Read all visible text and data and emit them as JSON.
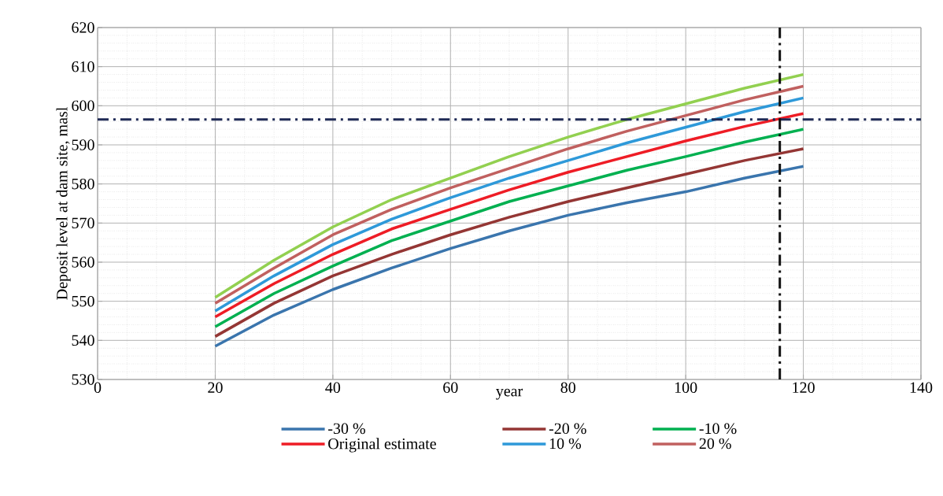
{
  "chart_data": {
    "type": "line",
    "xlabel": "year",
    "ylabel": "Deposit level at dam site, masl",
    "x": [
      20,
      30,
      40,
      50,
      60,
      70,
      80,
      90,
      100,
      110,
      120
    ],
    "series": [
      {
        "name": "-30 %",
        "color": "#3a75ad",
        "values": [
          538.5,
          546.5,
          553,
          558.5,
          563.5,
          568,
          572,
          575.2,
          578,
          581.5,
          584.5
        ]
      },
      {
        "name": "-20 %",
        "color": "#943634",
        "values": [
          541,
          549.5,
          556.5,
          562,
          567,
          571.5,
          575.5,
          579,
          582.5,
          586,
          589
        ]
      },
      {
        "name": "-10 %",
        "color": "#00b050",
        "values": [
          543.5,
          552,
          559,
          565.5,
          570.5,
          575.5,
          579.5,
          583.5,
          587,
          590.7,
          594
        ]
      },
      {
        "name": "Original estimate",
        "color": "#ee1c25",
        "values": [
          546,
          554.5,
          562,
          568.5,
          573.5,
          578.5,
          583,
          587,
          591,
          594.7,
          598
        ]
      },
      {
        "name": "10 %",
        "color": "#2e99d9",
        "values": [
          547.5,
          556.5,
          564.5,
          571,
          576.5,
          581.5,
          586,
          590.5,
          594.5,
          598.5,
          602
        ]
      },
      {
        "name": "20 %",
        "color": "#c0605f",
        "values": [
          549.5,
          558.5,
          567,
          573.5,
          579,
          584,
          589,
          593.5,
          597.5,
          601.5,
          605
        ]
      },
      {
        "color": "#92d050",
        "values": [
          551,
          560.5,
          569,
          576,
          581.5,
          587,
          592,
          596.5,
          600.5,
          604.5,
          608
        ]
      }
    ],
    "xlim": [
      0,
      140
    ],
    "xticks": [
      0,
      20,
      40,
      60,
      80,
      100,
      120,
      140
    ],
    "ylim": [
      530,
      620
    ],
    "yticks": [
      530,
      540,
      550,
      560,
      570,
      580,
      590,
      600,
      610,
      620
    ],
    "ref_lines": [
      {
        "axis": "y",
        "value": 596.5,
        "color": "#1f2a55",
        "line_style": "dashdot"
      },
      {
        "axis": "x",
        "value": 116,
        "color": "#111111",
        "line_style": "dashdot"
      }
    ],
    "grid": true,
    "legend": "bottom",
    "marker": "none",
    "line_style": "solid"
  }
}
